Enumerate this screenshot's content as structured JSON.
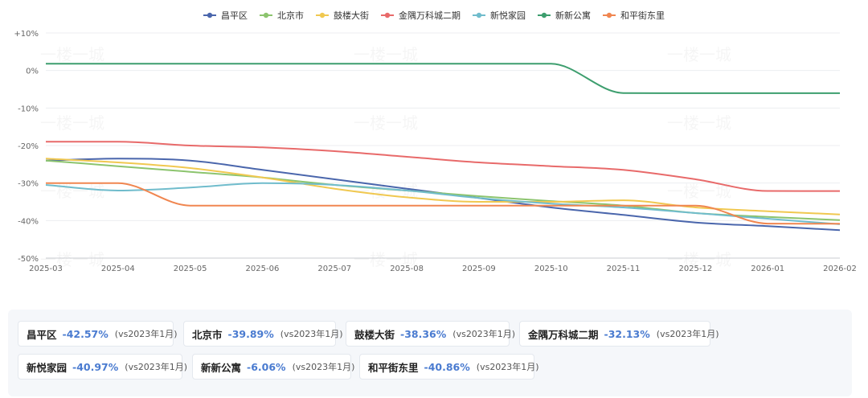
{
  "chart_data": {
    "type": "line",
    "x": [
      "2025-03",
      "2025-04",
      "2025-05",
      "2025-06",
      "2025-07",
      "2025-08",
      "2025-09",
      "2025-10",
      "2025-11",
      "2025-12",
      "2026-01",
      "2026-02"
    ],
    "ylim": [
      -50,
      10
    ],
    "yticks": [
      "+10%",
      "0%",
      "-10%",
      "-20%",
      "-30%",
      "-40%",
      "-50%"
    ],
    "legend_position": "top",
    "grid": "horizontal",
    "series": [
      {
        "name": "昌平区",
        "color": "#4a66ac",
        "values": [
          -24,
          -23.5,
          -24,
          -26.5,
          -29,
          -31.5,
          -34,
          -36.5,
          -38.5,
          -40.5,
          -41.5,
          -42.57
        ]
      },
      {
        "name": "北京市",
        "color": "#8cc46e",
        "values": [
          -24,
          -25.5,
          -27,
          -28.5,
          -30.5,
          -32,
          -33.5,
          -34.8,
          -36,
          -38,
          -39,
          -39.89
        ]
      },
      {
        "name": "鼓楼大街",
        "color": "#f0c850",
        "values": [
          -23.5,
          -24.5,
          -26,
          -28.5,
          -31.5,
          -33.8,
          -35,
          -35,
          -34.6,
          -36.5,
          -37.5,
          -38.36
        ]
      },
      {
        "name": "金隅万科城二期",
        "color": "#e86a6a",
        "values": [
          -19,
          -19,
          -20,
          -20.5,
          -21.5,
          -23,
          -24.5,
          -25.5,
          -26.5,
          -29,
          -32.1,
          -32.13
        ]
      },
      {
        "name": "新悦家园",
        "color": "#70bccc",
        "values": [
          -30.5,
          -32,
          -31.2,
          -30,
          -30.5,
          -32,
          -34,
          -35.5,
          -36.5,
          -38,
          -39.5,
          -40.97
        ]
      },
      {
        "name": "新新公寓",
        "color": "#3d9e6e",
        "values": [
          1.8,
          1.8,
          1.8,
          1.8,
          1.8,
          1.8,
          1.8,
          1.8,
          -6,
          -6.06,
          -6.06,
          -6.06
        ]
      },
      {
        "name": "和平街东里",
        "color": "#f08650",
        "values": [
          -30,
          -30,
          -36,
          -36,
          -36,
          -36,
          -36,
          -36,
          -36,
          -36,
          -40.8,
          -40.86
        ]
      }
    ]
  },
  "watermark": "一楼一城",
  "cards": [
    {
      "name": "昌平区",
      "value": "-42.57%",
      "compare": "(vs2023年1月)"
    },
    {
      "name": "北京市",
      "value": "-39.89%",
      "compare": "(vs2023年1月)"
    },
    {
      "name": "鼓楼大街",
      "value": "-38.36%",
      "compare": "(vs2023年1月)"
    },
    {
      "name": "金隅万科城二期",
      "value": "-32.13%",
      "compare": "(vs2023年1月)"
    },
    {
      "name": "新悦家园",
      "value": "-40.97%",
      "compare": "(vs2023年1月)"
    },
    {
      "name": "新新公寓",
      "value": "-6.06%",
      "compare": "(vs2023年1月)"
    },
    {
      "name": "和平街东里",
      "value": "-40.86%",
      "compare": "(vs2023年1月)"
    }
  ]
}
